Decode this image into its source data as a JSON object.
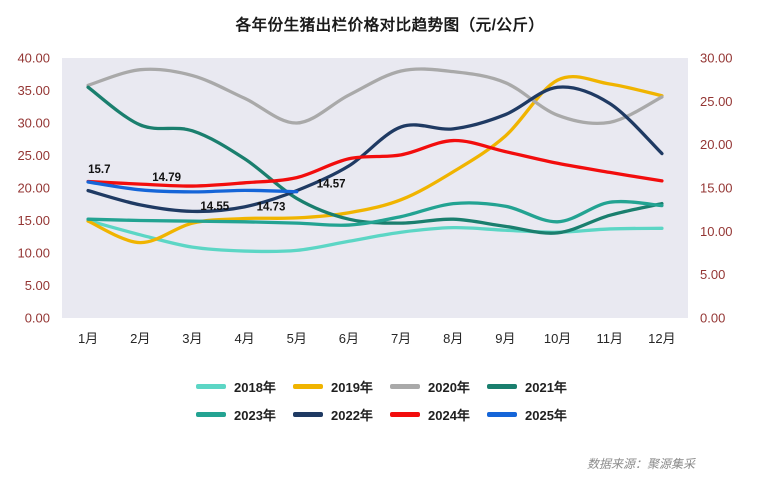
{
  "title": "各年份生猪出栏价格对比趋势图（元/公斤）",
  "source": "数据来源：聚源集采",
  "chart_data": {
    "type": "line",
    "title": "各年份生猪出栏价格对比趋势图（元/公斤）",
    "categories": [
      "1月",
      "2月",
      "3月",
      "4月",
      "5月",
      "6月",
      "7月",
      "8月",
      "9月",
      "10月",
      "11月",
      "12月"
    ],
    "left_axis": {
      "min": 0,
      "max": 40,
      "ticks": [
        "0.00",
        "5.00",
        "10.00",
        "15.00",
        "20.00",
        "25.00",
        "30.00",
        "35.00",
        "40.00"
      ]
    },
    "right_axis": {
      "min": 0,
      "max": 30,
      "ticks": [
        "0.00",
        "5.00",
        "10.00",
        "15.00",
        "20.00",
        "25.00",
        "30.00"
      ]
    },
    "grid": false,
    "legend_position": "bottom",
    "plot_bg": "#e9e9f1",
    "axis_label_color": "#943634",
    "series": [
      {
        "name": "2018年",
        "color": "#5cd6c5",
        "axis": "left",
        "values": [
          15.0,
          12.8,
          10.9,
          10.3,
          10.4,
          11.8,
          13.2,
          13.9,
          13.5,
          13.2,
          13.7,
          13.8
        ]
      },
      {
        "name": "2019年",
        "color": "#f0b400",
        "axis": "left",
        "values": [
          14.9,
          11.6,
          14.6,
          15.3,
          15.4,
          16.2,
          18.2,
          22.5,
          28.0,
          36.6,
          36.0,
          34.2
        ]
      },
      {
        "name": "2020年",
        "color": "#a9a9a9",
        "axis": "left",
        "values": [
          35.8,
          38.2,
          37.3,
          33.8,
          30.0,
          34.3,
          38.0,
          37.9,
          36.2,
          31.2,
          30.1,
          34.0
        ]
      },
      {
        "name": "2021年",
        "color": "#1a7f6e",
        "axis": "left",
        "values": [
          35.5,
          29.7,
          28.8,
          24.5,
          18.4,
          15.2,
          14.6,
          15.2,
          14.1,
          13.1,
          15.8,
          17.6
        ]
      },
      {
        "name": "2023年",
        "color": "#23a392",
        "axis": "left",
        "values": [
          15.2,
          15.0,
          14.9,
          14.8,
          14.6,
          14.3,
          15.6,
          17.6,
          17.2,
          14.8,
          17.8,
          17.3
        ]
      },
      {
        "name": "2022年",
        "color": "#1f3a63",
        "axis": "left",
        "values": [
          19.6,
          17.4,
          16.4,
          17.1,
          19.6,
          23.4,
          29.4,
          29.1,
          31.3,
          35.5,
          33.0,
          25.3
        ]
      },
      {
        "name": "2024年",
        "color": "#f20d0d",
        "axis": "left",
        "values": [
          21.0,
          20.6,
          20.3,
          20.8,
          21.6,
          24.5,
          25.1,
          27.3,
          25.6,
          23.8,
          22.4,
          21.1
        ]
      },
      {
        "name": "2025年",
        "color": "#1565d8",
        "axis": "right",
        "values": [
          15.7,
          14.79,
          14.55,
          14.73,
          14.57
        ],
        "point_labels": [
          "15.7",
          "14.79",
          "14.55",
          "14.73",
          "14.57"
        ]
      }
    ],
    "legend_rows": [
      [
        "2018年",
        "2019年",
        "2020年",
        "2021年"
      ],
      [
        "2023年",
        "2022年",
        "2024年",
        "2025年"
      ]
    ]
  }
}
